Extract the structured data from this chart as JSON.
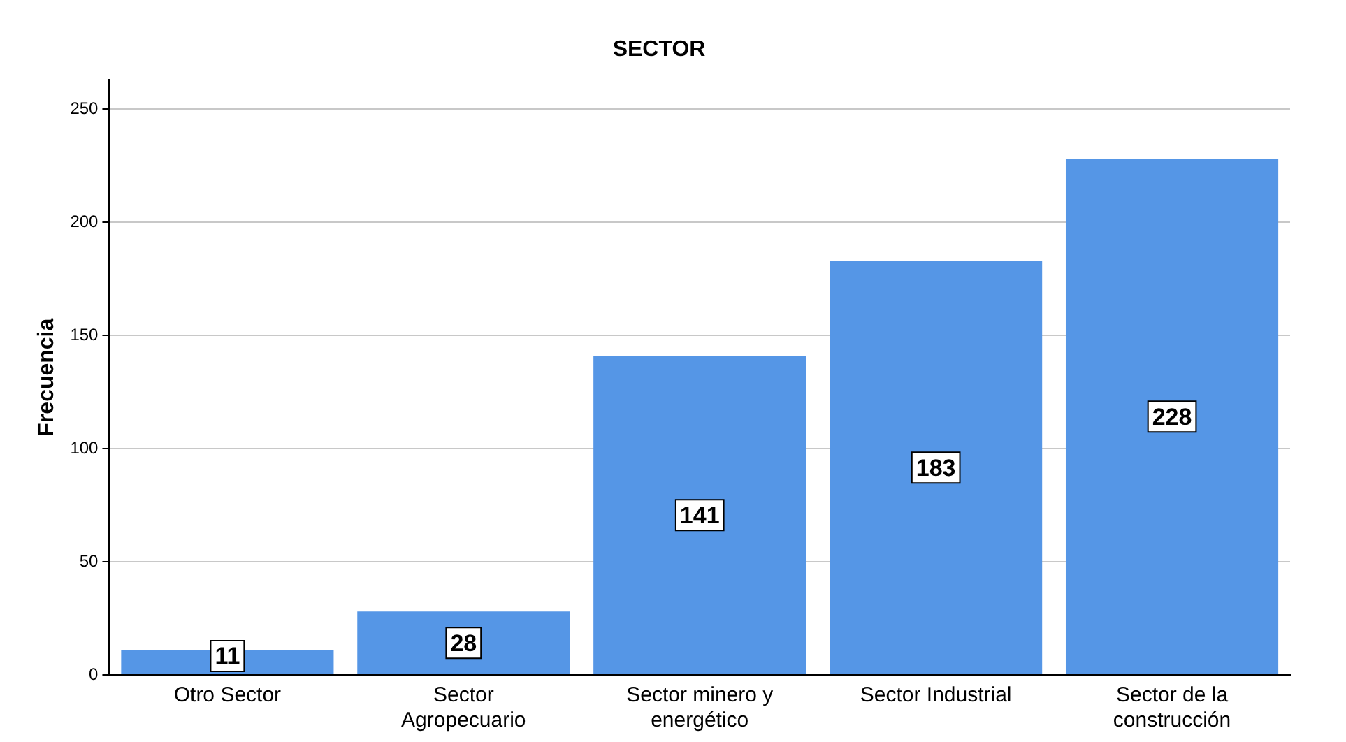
{
  "chart_data": {
    "type": "bar",
    "title": "SECTOR",
    "ylabel": "Frecuencia",
    "categories": [
      "Otro Sector",
      "Sector Agropecuario",
      "Sector minero y energético",
      "Sector Industrial",
      "Sector de la construcción"
    ],
    "values": [
      11,
      28,
      141,
      183,
      228
    ],
    "color": "#5596e6",
    "ylim": [
      0,
      263
    ],
    "yticks": [
      0,
      50,
      100,
      150,
      200,
      250
    ],
    "grid": "y",
    "legend": false,
    "data_labels": true
  }
}
